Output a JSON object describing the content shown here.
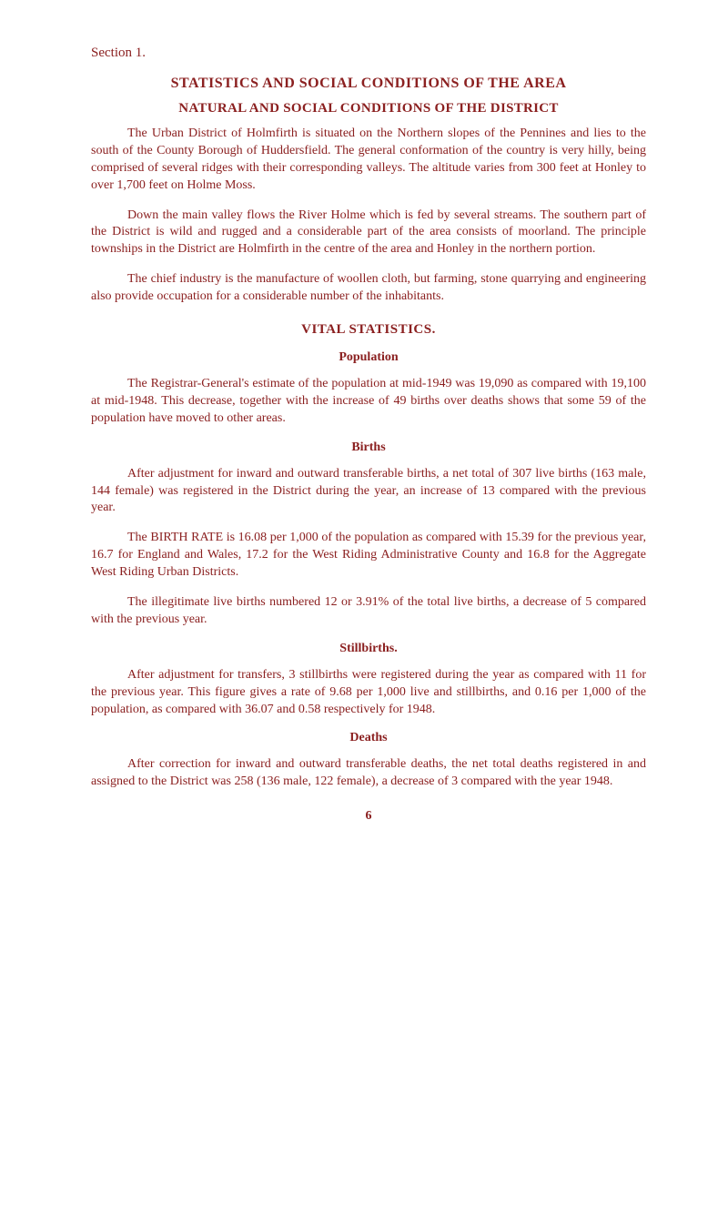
{
  "section": "Section 1.",
  "heading1": "STATISTICS AND SOCIAL CONDITIONS OF THE AREA",
  "heading2": "NATURAL AND SOCIAL CONDITIONS OF THE DISTRICT",
  "mark": "",
  "para1": "The Urban District of Holmfirth is situated on the Northern slopes of the Pennines and lies to the south of the County Borough of Huddersfield. The general conformation of the country is very hilly, being comprised of several ridges with their corresponding valleys. The altitude varies from 300 feet at Honley to over 1,700 feet on Holme Moss.",
  "para2": "Down the main valley flows the River Holme which is fed by several streams. The southern part of the District is wild and rugged and a considerable part of the area consists of moorland. The principle townships in the District are Holmfirth in the centre of the area and Honley in the northern portion.",
  "para3": "The chief industry is the manufacture of woollen cloth, but farming, stone quarrying and engineering also provide occupation for a considerable number of the inhabitants.",
  "vital_heading": "VITAL STATISTICS.",
  "population_heading": "Population",
  "para4": "The Registrar-General's estimate of the population at mid-1949 was 19,090 as compared with 19,100 at mid-1948. This decrease, together with the increase of 49 births over deaths shows that some 59 of the population have moved to other areas.",
  "births_heading": "Births",
  "para5": "After adjustment for inward and outward transferable births, a net total of 307 live births (163 male, 144 female) was registered in the District during the year, an increase of 13 compared with the previous year.",
  "para6": "The BIRTH RATE is 16.08 per 1,000 of the population as compared with 15.39 for the previous year, 16.7 for England and Wales, 17.2 for the West Riding Administrative County and 16.8 for the Aggregate West Riding Urban Districts.",
  "para7": "The illegitimate live births numbered 12 or 3.91% of the total live births, a decrease of 5 compared with the previous year.",
  "stillbirths_heading": "Stillbirths.",
  "para8": "After adjustment for transfers, 3 stillbirths were registered during the year as compared with 11 for the previous year. This figure gives a rate of 9.68 per 1,000 live and stillbirths, and 0.16 per 1,000 of the population, as compared with 36.07 and 0.58 respectively for 1948.",
  "deaths_heading": "Deaths",
  "para9": "After correction for inward and outward transferable deaths, the net total deaths registered in and assigned to the District was 258 (136 male, 122 female), a decrease of 3 compared with the year 1948.",
  "page_number": "6"
}
